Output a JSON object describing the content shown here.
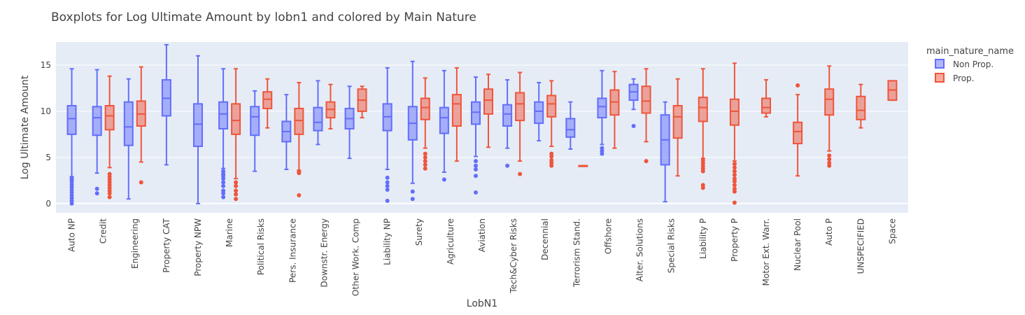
{
  "chart_data": {
    "type": "box",
    "title": "Boxplots for Log Ultimate Amount by lobn1 and colored by Main Nature",
    "xlabel": "LobN1",
    "ylabel": "Log Ultimate Amount",
    "ylim": [
      -1,
      17.5
    ],
    "yticks": [
      0,
      5,
      10,
      15
    ],
    "grid": true,
    "legend": {
      "title": "main_nature_name",
      "placement": "top-right",
      "entries": [
        {
          "name": "Non Prop.",
          "color": "#636efa"
        },
        {
          "name": "Prop.",
          "color": "#ef553b"
        }
      ]
    },
    "categories": [
      "Auto NP",
      "Credit",
      "Engineering",
      "Property CAT",
      "Property NPW",
      "Marine",
      "Political Risks",
      "Pers. Insurance",
      "Downstr. Energy",
      "Other Work. Comp",
      "Liability NP",
      "Surety",
      "Agriculture",
      "Aviation",
      "Tech&Cyber Risks",
      "Decennial",
      "Terrorism Stand.",
      "Offshore",
      "Alter. Solutions",
      "Special Risks",
      "Liability P",
      "Property P",
      "Motor Ext. Warr.",
      "Nuclear Pool",
      "Auto P",
      "UNSPECIFIED",
      "Space"
    ],
    "series": [
      {
        "name": "Non Prop.",
        "color": "#636efa",
        "boxes": [
          {
            "category": "Auto NP",
            "min": 2.9,
            "q1": 7.5,
            "median": 9.2,
            "q3": 10.6,
            "max": 14.6,
            "outliers": [
              0.0,
              0.3,
              0.6,
              0.9,
              1.2,
              1.5,
              1.8,
              2.1,
              2.4,
              2.6,
              2.8
            ]
          },
          {
            "category": "Credit",
            "min": 3.3,
            "q1": 7.4,
            "median": 9.3,
            "q3": 10.5,
            "max": 14.5,
            "outliers": [
              1.1,
              1.6
            ]
          },
          {
            "category": "Engineering",
            "min": 0.5,
            "q1": 6.3,
            "median": 8.3,
            "q3": 11.0,
            "max": 13.5,
            "outliers": []
          },
          {
            "category": "Property CAT",
            "min": 4.2,
            "q1": 9.5,
            "median": 11.4,
            "q3": 13.4,
            "max": 17.2,
            "outliers": []
          },
          {
            "category": "Property NPW",
            "min": 0.0,
            "q1": 6.2,
            "median": 8.6,
            "q3": 10.8,
            "max": 16.0,
            "outliers": []
          },
          {
            "category": "Marine",
            "min": 3.8,
            "q1": 8.1,
            "median": 9.7,
            "q3": 11.0,
            "max": 14.6,
            "outliers": [
              0.7,
              1.1,
              1.4,
              1.9,
              2.3,
              2.7,
              3.0,
              3.2,
              3.5
            ]
          },
          {
            "category": "Political Risks",
            "min": 3.5,
            "q1": 7.4,
            "median": 9.4,
            "q3": 10.5,
            "max": 12.2,
            "outliers": []
          },
          {
            "category": "Pers. Insurance",
            "min": 3.7,
            "q1": 6.7,
            "median": 7.8,
            "q3": 8.9,
            "max": 11.8,
            "outliers": []
          },
          {
            "category": "Downstr. Energy",
            "min": 6.4,
            "q1": 7.9,
            "median": 8.8,
            "q3": 10.4,
            "max": 13.3,
            "outliers": []
          },
          {
            "category": "Other Work. Comp",
            "min": 4.9,
            "q1": 8.1,
            "median": 9.2,
            "q3": 10.3,
            "max": 12.7,
            "outliers": []
          },
          {
            "category": "Liability NP",
            "min": 3.7,
            "q1": 7.9,
            "median": 9.4,
            "q3": 10.8,
            "max": 14.7,
            "outliers": [
              0.3,
              1.5,
              1.9,
              2.3,
              2.8
            ]
          },
          {
            "category": "Surety",
            "min": 2.2,
            "q1": 6.9,
            "median": 8.7,
            "q3": 10.5,
            "max": 15.4,
            "outliers": [
              0.5,
              1.3
            ]
          },
          {
            "category": "Agriculture",
            "min": 3.4,
            "q1": 7.6,
            "median": 9.3,
            "q3": 10.4,
            "max": 14.4,
            "outliers": [
              2.6
            ]
          },
          {
            "category": "Aviation",
            "min": 5.1,
            "q1": 8.6,
            "median": 9.9,
            "q3": 11.0,
            "max": 13.7,
            "outliers": [
              1.2,
              3.0,
              3.7,
              4.1,
              4.6
            ]
          },
          {
            "category": "Tech&Cyber Risks",
            "min": 6.0,
            "q1": 8.4,
            "median": 9.7,
            "q3": 10.7,
            "max": 13.4,
            "outliers": [
              4.1
            ]
          },
          {
            "category": "Decennial",
            "min": 6.8,
            "q1": 8.7,
            "median": 10.0,
            "q3": 11.0,
            "max": 13.1,
            "outliers": []
          },
          {
            "category": "Terrorism Stand.",
            "min": 5.9,
            "q1": 7.2,
            "median": 8.0,
            "q3": 9.2,
            "max": 11.0,
            "outliers": []
          },
          {
            "category": "Offshore",
            "min": 6.4,
            "q1": 9.3,
            "median": 10.5,
            "q3": 11.4,
            "max": 14.4,
            "outliers": [
              5.4,
              5.7,
              6.0
            ]
          },
          {
            "category": "Alter. Solutions",
            "min": 10.2,
            "q1": 11.2,
            "median": 12.1,
            "q3": 12.9,
            "max": 13.5,
            "outliers": [
              8.4
            ]
          },
          {
            "category": "Special Risks",
            "min": 0.2,
            "q1": 4.2,
            "median": 6.9,
            "q3": 9.6,
            "max": 11.0,
            "outliers": []
          },
          {
            "category": "Nuclear Pool",
            "min": null,
            "q1": null,
            "median": null,
            "q3": null,
            "max": null,
            "outliers": []
          }
        ]
      },
      {
        "name": "Prop.",
        "color": "#ef553b",
        "boxes": [
          {
            "category": "Credit",
            "min": 3.9,
            "q1": 8.0,
            "median": 9.5,
            "q3": 10.6,
            "max": 13.8,
            "outliers": [
              0.7,
              1.1,
              1.4,
              1.7,
              2.0,
              2.3,
              2.6,
              2.9,
              3.2
            ]
          },
          {
            "category": "Engineering",
            "min": 4.5,
            "q1": 8.4,
            "median": 9.7,
            "q3": 11.1,
            "max": 14.8,
            "outliers": [
              2.3
            ]
          },
          {
            "category": "Marine",
            "min": 2.7,
            "q1": 7.5,
            "median": 9.0,
            "q3": 10.8,
            "max": 14.6,
            "outliers": [
              0.5,
              1.0,
              1.4,
              1.9,
              2.3
            ]
          },
          {
            "category": "Political Risks",
            "min": 8.2,
            "q1": 10.3,
            "median": 11.3,
            "q3": 12.1,
            "max": 13.5,
            "outliers": []
          },
          {
            "category": "Pers. Insurance",
            "min": 3.6,
            "q1": 7.5,
            "median": 9.0,
            "q3": 10.3,
            "max": 13.1,
            "outliers": [
              0.9,
              3.3,
              3.5
            ]
          },
          {
            "category": "Downstr. Energy",
            "min": 8.1,
            "q1": 9.3,
            "median": 10.2,
            "q3": 11.0,
            "max": 12.9,
            "outliers": []
          },
          {
            "category": "Other Work. Comp",
            "min": 9.3,
            "q1": 10.0,
            "median": 11.2,
            "q3": 12.4,
            "max": 12.7,
            "outliers": []
          },
          {
            "category": "Surety",
            "min": 6.0,
            "q1": 9.1,
            "median": 10.4,
            "q3": 11.4,
            "max": 13.6,
            "outliers": [
              3.8,
              4.2,
              4.6,
              5.0,
              5.4
            ]
          },
          {
            "category": "Agriculture",
            "min": 4.6,
            "q1": 8.4,
            "median": 10.8,
            "q3": 11.8,
            "max": 14.7,
            "outliers": []
          },
          {
            "category": "Aviation",
            "min": 6.1,
            "q1": 9.7,
            "median": 11.2,
            "q3": 12.4,
            "max": 14.0,
            "outliers": []
          },
          {
            "category": "Tech&Cyber Risks",
            "min": 4.6,
            "q1": 9.0,
            "median": 10.8,
            "q3": 12.0,
            "max": 14.2,
            "outliers": [
              3.2
            ]
          },
          {
            "category": "Decennial",
            "min": 6.2,
            "q1": 9.4,
            "median": 10.8,
            "q3": 11.7,
            "max": 13.3,
            "outliers": [
              4.1,
              4.4,
              4.7,
              5.1,
              5.4
            ]
          },
          {
            "category": "Terrorism Stand.",
            "min": 4.1,
            "q1": 4.1,
            "median": 4.1,
            "q3": 4.1,
            "max": 4.1,
            "outliers": []
          },
          {
            "category": "Offshore",
            "min": 6.0,
            "q1": 9.6,
            "median": 11.0,
            "q3": 12.3,
            "max": 14.3,
            "outliers": []
          },
          {
            "category": "Alter. Solutions",
            "min": 6.7,
            "q1": 9.8,
            "median": 11.1,
            "q3": 12.7,
            "max": 14.6,
            "outliers": [
              4.6
            ]
          },
          {
            "category": "Special Risks",
            "min": 3.0,
            "q1": 7.1,
            "median": 9.4,
            "q3": 10.6,
            "max": 13.5,
            "outliers": []
          },
          {
            "category": "Liability P",
            "min": 4.9,
            "q1": 8.9,
            "median": 10.4,
            "q3": 11.5,
            "max": 14.6,
            "outliers": [
              1.7,
              2.0,
              3.5,
              3.8,
              4.1,
              4.4,
              4.7
            ]
          },
          {
            "category": "Property P",
            "min": 4.6,
            "q1": 8.5,
            "median": 10.0,
            "q3": 11.3,
            "max": 15.2,
            "outliers": [
              0.1,
              1.3,
              1.6,
              2.0,
              2.4,
              2.7,
              3.1,
              3.5,
              3.9,
              4.3
            ]
          },
          {
            "category": "Motor Ext. Warr.",
            "min": 9.4,
            "q1": 9.8,
            "median": 10.4,
            "q3": 11.4,
            "max": 13.4,
            "outliers": []
          },
          {
            "category": "Nuclear Pool",
            "min": 3.0,
            "q1": 6.5,
            "median": 7.8,
            "q3": 8.8,
            "max": 11.8,
            "outliers": [
              12.8
            ]
          },
          {
            "category": "Auto P",
            "min": 5.7,
            "q1": 9.6,
            "median": 11.3,
            "q3": 12.4,
            "max": 14.9,
            "outliers": [
              4.1,
              4.4,
              4.8,
              5.2
            ]
          },
          {
            "category": "UNSPECIFIED",
            "min": 8.2,
            "q1": 9.1,
            "median": 10.1,
            "q3": 11.6,
            "max": 12.9,
            "outliers": []
          },
          {
            "category": "Space",
            "min": 11.2,
            "q1": 11.2,
            "median": 12.3,
            "q3": 13.3,
            "max": 13.3,
            "outliers": []
          }
        ]
      }
    ]
  }
}
